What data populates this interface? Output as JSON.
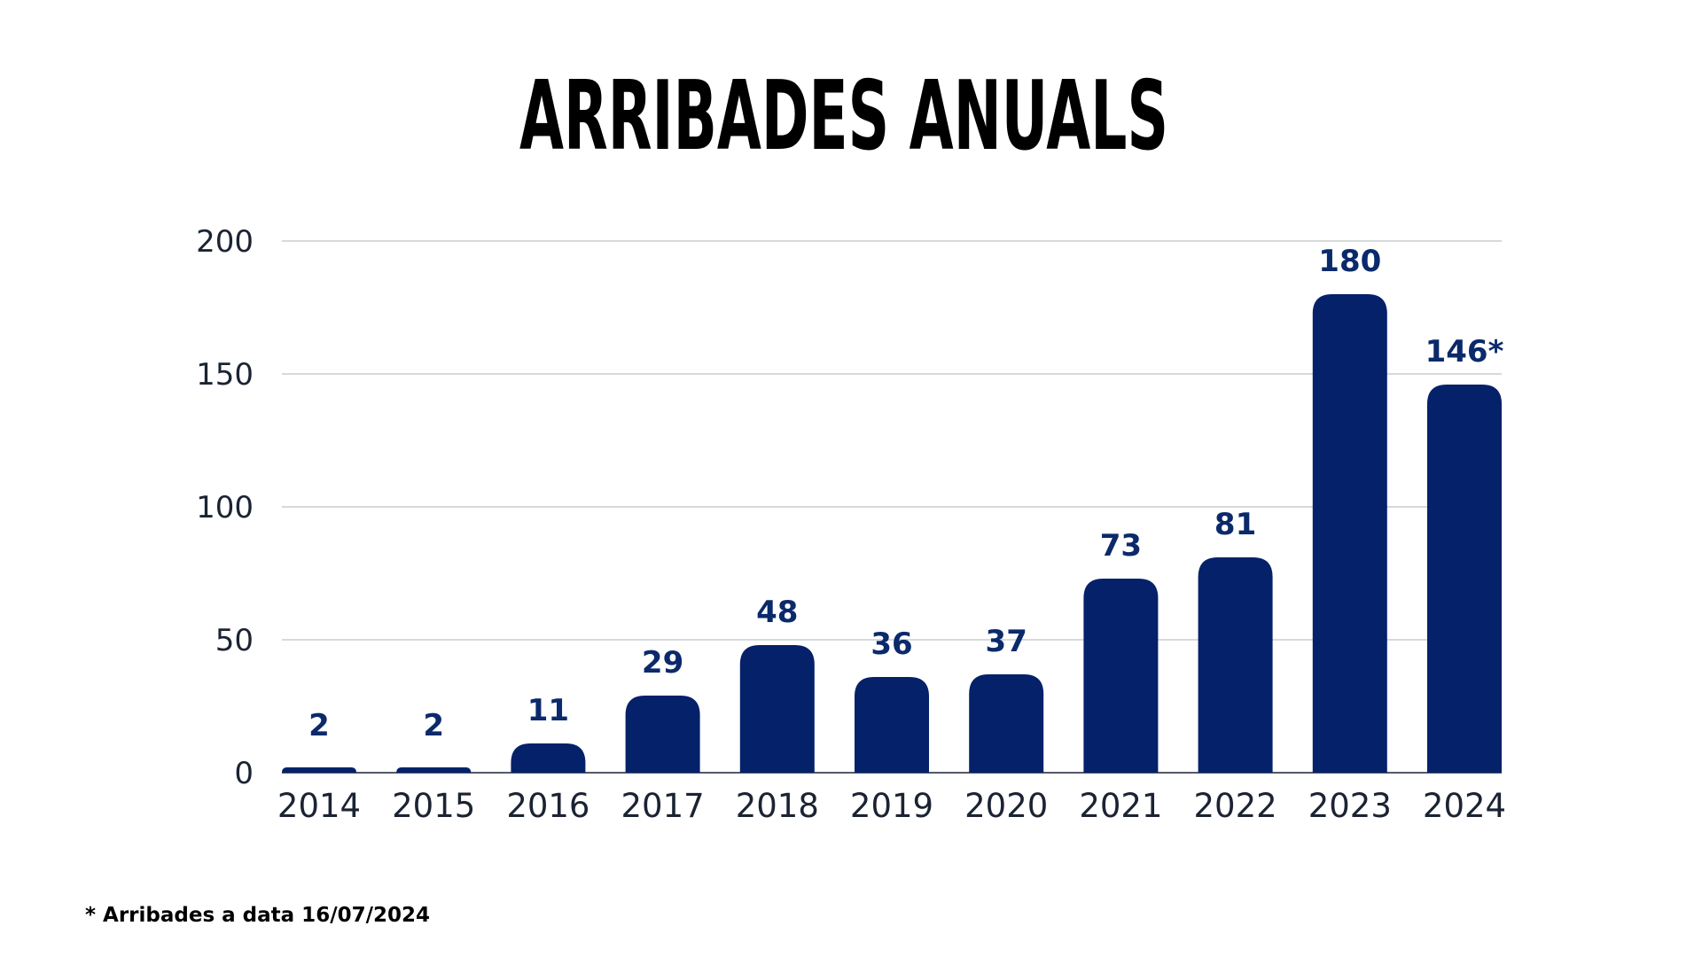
{
  "chart_data": {
    "type": "bar",
    "title": "ARRIBADES ANUALS",
    "categories": [
      "2014",
      "2015",
      "2016",
      "2017",
      "2018",
      "2019",
      "2020",
      "2021",
      "2022",
      "2023",
      "2024"
    ],
    "values": [
      2,
      2,
      11,
      29,
      48,
      36,
      37,
      73,
      81,
      180,
      146
    ],
    "data_labels": [
      "2",
      "2",
      "11",
      "29",
      "48",
      "36",
      "37",
      "73",
      "81",
      "180",
      "146*"
    ],
    "y_ticks": [
      0,
      50,
      100,
      150,
      200
    ],
    "ylim": [
      0,
      200
    ],
    "xlabel": "",
    "ylabel": "",
    "grid": true,
    "bar_color": "#05216a",
    "label_color": "#0b2a6b",
    "footnote": "* Arribades a data 16/07/2024"
  }
}
